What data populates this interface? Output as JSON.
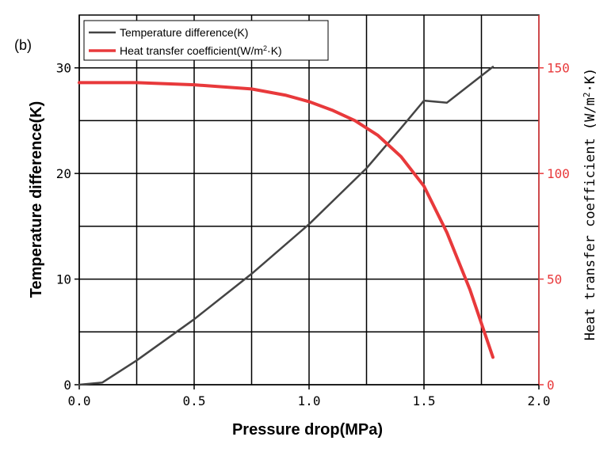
{
  "chart_data": {
    "type": "line",
    "panel_label": "(b)",
    "xlabel": "Pressure drop(MPa)",
    "ylabel_left": "Temperature difference(K)",
    "ylabel_right_prefix": "Heat transfer coefficient (W/m",
    "ylabel_right_sup": "2",
    "ylabel_right_suffix": "·K)",
    "xlim": [
      0.0,
      2.0
    ],
    "ylim_left": [
      0,
      35
    ],
    "ylim_right": [
      0,
      175
    ],
    "xticks": [
      0.0,
      0.5,
      1.0,
      1.5,
      2.0
    ],
    "xtick_labels": [
      "0.0",
      "0.5",
      "1.0",
      "1.5",
      "2.0"
    ],
    "yticks_left": [
      0,
      10,
      20,
      30
    ],
    "ytick_labels_left": [
      "0",
      "10",
      "20",
      "30"
    ],
    "yticks_right": [
      0,
      50,
      100,
      150
    ],
    "ytick_labels_right": [
      "0",
      "50",
      "100",
      "150"
    ],
    "grid": true,
    "legend": {
      "placement": "top-left",
      "entries": [
        {
          "series": "temp",
          "label": "Temperature difference(K)"
        },
        {
          "series": "htc",
          "label_prefix": "Heat transfer coefficient(W/m",
          "label_sup": "2",
          "label_suffix": "·K)"
        }
      ]
    },
    "series": [
      {
        "name": "Temperature difference(K)",
        "axis": "left",
        "color": "#444444",
        "x": [
          0.0,
          0.1,
          0.25,
          0.5,
          0.75,
          1.0,
          1.25,
          1.4,
          1.5,
          1.6,
          1.8
        ],
        "y": [
          0,
          0.2,
          2.3,
          6.2,
          10.5,
          15.2,
          20.5,
          24.3,
          26.9,
          26.7,
          30.1
        ]
      },
      {
        "name": "Heat transfer coefficient(W/m2·K)",
        "axis": "right",
        "color": "#e8393b",
        "x": [
          0.0,
          0.25,
          0.5,
          0.75,
          0.9,
          1.0,
          1.1,
          1.2,
          1.3,
          1.4,
          1.5,
          1.6,
          1.7,
          1.8
        ],
        "y": [
          143,
          143,
          142,
          140,
          137,
          134,
          130,
          125,
          118,
          108,
          94,
          72,
          45,
          13
        ]
      }
    ]
  }
}
